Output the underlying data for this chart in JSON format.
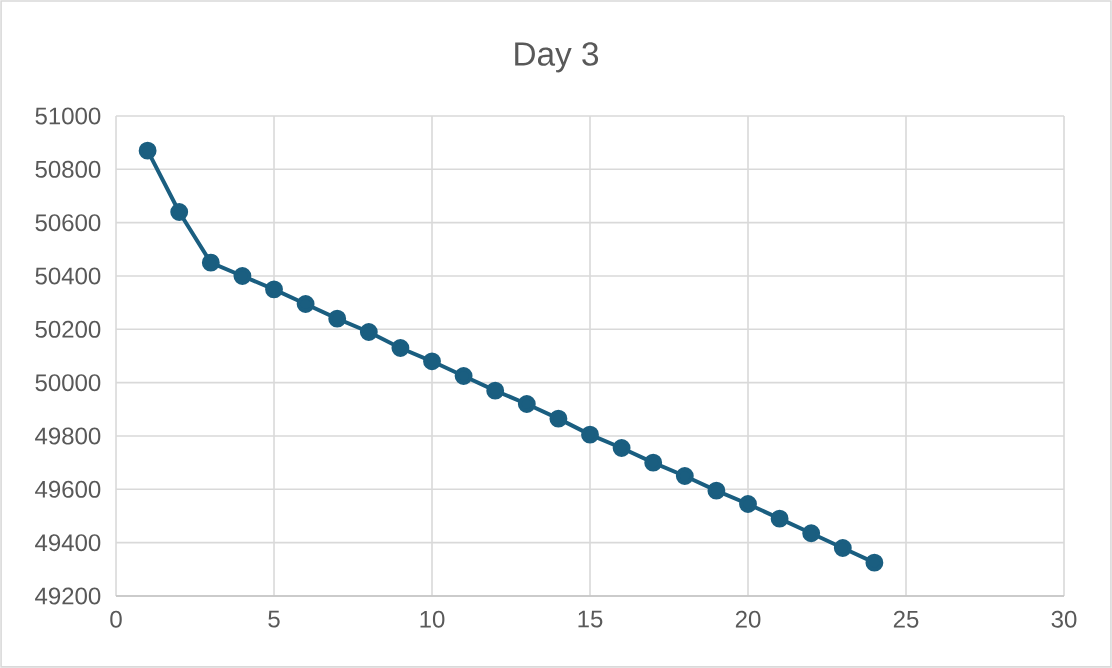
{
  "chart_data": {
    "type": "line",
    "title": "Day 3",
    "x": [
      1,
      2,
      3,
      4,
      5,
      6,
      7,
      8,
      9,
      10,
      11,
      12,
      13,
      14,
      15,
      16,
      17,
      18,
      19,
      20,
      21,
      22,
      23,
      24
    ],
    "values": [
      50870,
      50640,
      50450,
      50400,
      50350,
      50295,
      50240,
      50190,
      50130,
      50080,
      50025,
      49970,
      49920,
      49865,
      49805,
      49755,
      49700,
      49650,
      49595,
      49545,
      49490,
      49435,
      49380,
      49325
    ],
    "color": "#1a5e80",
    "xlim": [
      0,
      30
    ],
    "xticks": [
      0,
      5,
      10,
      15,
      20,
      25,
      30
    ],
    "ylim": [
      49200,
      51000
    ],
    "yticks": [
      49200,
      49400,
      49600,
      49800,
      50000,
      50200,
      50400,
      50600,
      50800,
      51000
    ],
    "grid": true,
    "marker": "circle",
    "line_style": "solid"
  }
}
